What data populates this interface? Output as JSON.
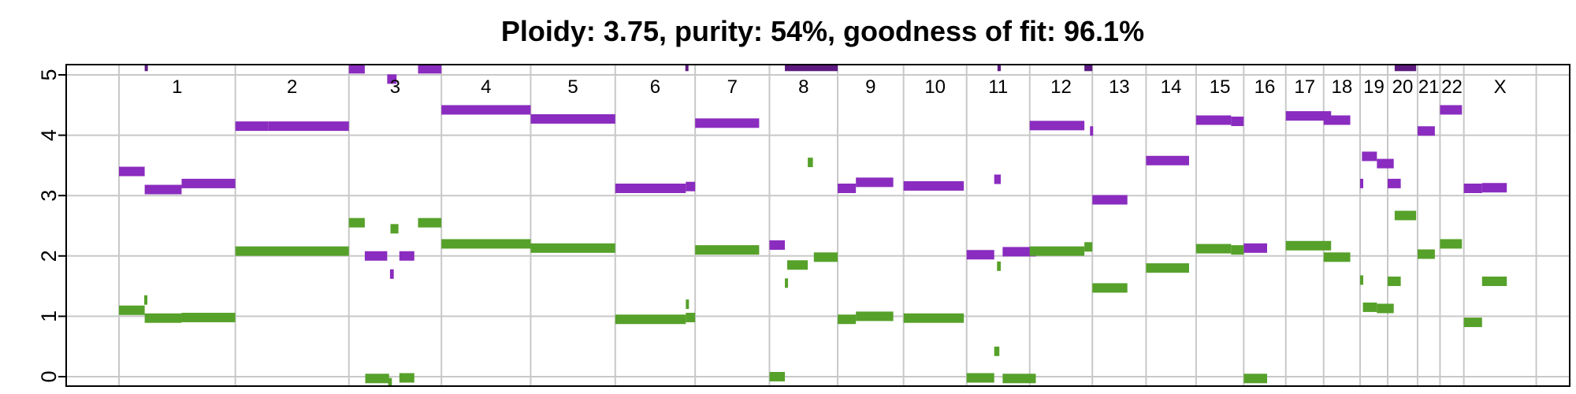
{
  "chart_data": {
    "type": "scatter",
    "title": "Ploidy: 3.75, purity: 54%, goodness of fit: 96.1%",
    "xlabel": "",
    "ylabel": "",
    "ylim": [
      -0.15,
      5.1
    ],
    "xlim": [
      0,
      3103
    ],
    "yticks": [
      0,
      1,
      2,
      3,
      4,
      5
    ],
    "grid": true,
    "legend": "none",
    "colors": {
      "major": "#8a2cbf",
      "minor": "#56a12a",
      "clipped": "#5c1a80",
      "grid": "#c8c8c8"
    },
    "chromosomes": [
      {
        "label": "1",
        "start": 0,
        "end": 249
      },
      {
        "label": "2",
        "start": 249,
        "end": 492
      },
      {
        "label": "3",
        "start": 492,
        "end": 690
      },
      {
        "label": "4",
        "start": 690,
        "end": 881
      },
      {
        "label": "5",
        "start": 881,
        "end": 1062
      },
      {
        "label": "6",
        "start": 1062,
        "end": 1233
      },
      {
        "label": "7",
        "start": 1233,
        "end": 1392
      },
      {
        "label": "8",
        "start": 1392,
        "end": 1538
      },
      {
        "label": "9",
        "start": 1538,
        "end": 1679
      },
      {
        "label": "10",
        "start": 1679,
        "end": 1814
      },
      {
        "label": "11",
        "start": 1814,
        "end": 1949
      },
      {
        "label": "12",
        "start": 1949,
        "end": 2083
      },
      {
        "label": "13",
        "start": 2083,
        "end": 2198
      },
      {
        "label": "14",
        "start": 2198,
        "end": 2305
      },
      {
        "label": "15",
        "start": 2305,
        "end": 2407
      },
      {
        "label": "16",
        "start": 2407,
        "end": 2497
      },
      {
        "label": "17",
        "start": 2497,
        "end": 2578
      },
      {
        "label": "18",
        "start": 2578,
        "end": 2656
      },
      {
        "label": "19",
        "start": 2656,
        "end": 2715
      },
      {
        "label": "20",
        "start": 2715,
        "end": 2779
      },
      {
        "label": "21",
        "start": 2779,
        "end": 2827
      },
      {
        "label": "22",
        "start": 2827,
        "end": 2878
      },
      {
        "label": "X",
        "start": 2878,
        "end": 3033
      }
    ],
    "series": [
      {
        "role": "major",
        "segments": [
          [
            0,
            55,
            3.4
          ],
          [
            55,
            134,
            3.1
          ],
          [
            134,
            249,
            3.2
          ],
          [
            55,
            59,
            5.15
          ],
          [
            249,
            320,
            4.15
          ],
          [
            320,
            492,
            4.15
          ],
          [
            492,
            526,
            5.1
          ],
          [
            526,
            574,
            2.0
          ],
          [
            574,
            594,
            4.93
          ],
          [
            580,
            588,
            1.7
          ],
          [
            600,
            632,
            2.0
          ],
          [
            640,
            690,
            5.1
          ],
          [
            690,
            881,
            4.42
          ],
          [
            881,
            1062,
            4.27
          ],
          [
            1062,
            1213,
            3.12
          ],
          [
            1213,
            1233,
            3.15
          ],
          [
            1212,
            1217,
            5.12
          ],
          [
            1233,
            1370,
            4.2
          ],
          [
            1392,
            1425,
            2.18
          ],
          [
            1425,
            1538,
            5.12
          ],
          [
            1538,
            1577,
            3.12
          ],
          [
            1577,
            1657,
            3.22
          ],
          [
            1679,
            1808,
            3.16
          ],
          [
            1814,
            1873,
            2.02
          ],
          [
            1873,
            1887,
            3.27
          ],
          [
            1880,
            1887,
            5.12
          ],
          [
            1891,
            1962,
            2.07
          ],
          [
            1949,
            2066,
            4.16
          ],
          [
            2066,
            2083,
            5.12
          ],
          [
            2078,
            2083,
            4.07
          ],
          [
            2083,
            2158,
            2.93
          ],
          [
            2198,
            2290,
            3.58
          ],
          [
            2305,
            2380,
            4.25
          ],
          [
            2380,
            2407,
            4.23
          ],
          [
            2407,
            2457,
            2.13
          ],
          [
            2497,
            2594,
            4.32
          ],
          [
            2578,
            2635,
            4.25
          ],
          [
            2656,
            2660,
            3.2
          ],
          [
            2660,
            2692,
            3.65
          ],
          [
            2692,
            2728,
            3.53
          ],
          [
            2715,
            2743,
            3.2
          ],
          [
            2730,
            2776,
            5.12
          ],
          [
            2779,
            2816,
            4.07
          ],
          [
            2827,
            2874,
            4.42
          ],
          [
            2878,
            2917,
            3.12
          ],
          [
            2917,
            2970,
            3.13
          ]
        ]
      },
      {
        "role": "minor",
        "segments": [
          [
            0,
            55,
            1.1
          ],
          [
            55,
            134,
            0.97
          ],
          [
            134,
            249,
            0.98
          ],
          [
            54,
            59,
            1.27
          ],
          [
            249,
            492,
            2.08
          ],
          [
            492,
            526,
            2.55
          ],
          [
            527,
            578,
            -0.03
          ],
          [
            576,
            584,
            -0.1
          ],
          [
            581,
            598,
            2.45
          ],
          [
            600,
            632,
            -0.02
          ],
          [
            640,
            690,
            2.55
          ],
          [
            690,
            881,
            2.2
          ],
          [
            881,
            1062,
            2.13
          ],
          [
            1062,
            1213,
            0.95
          ],
          [
            1213,
            1217,
            1.2
          ],
          [
            1213,
            1233,
            0.98
          ],
          [
            1233,
            1370,
            2.1
          ],
          [
            1392,
            1425,
            0.0
          ],
          [
            1425,
            1430,
            1.55
          ],
          [
            1430,
            1474,
            1.85
          ],
          [
            1474,
            1485,
            3.55
          ],
          [
            1487,
            1538,
            1.98
          ],
          [
            1538,
            1577,
            0.95
          ],
          [
            1577,
            1657,
            1.0
          ],
          [
            1679,
            1808,
            0.97
          ],
          [
            1814,
            1873,
            -0.02
          ],
          [
            1873,
            1884,
            0.42
          ],
          [
            1879,
            1887,
            1.83
          ],
          [
            1891,
            1962,
            -0.03
          ],
          [
            1949,
            2066,
            2.08
          ],
          [
            2066,
            2083,
            2.15
          ],
          [
            2083,
            2158,
            1.47
          ],
          [
            2198,
            2290,
            1.8
          ],
          [
            2305,
            2380,
            2.12
          ],
          [
            2380,
            2407,
            2.1
          ],
          [
            2407,
            2457,
            -0.03
          ],
          [
            2497,
            2594,
            2.17
          ],
          [
            2578,
            2635,
            1.98
          ],
          [
            2656,
            2662,
            1.6
          ],
          [
            2662,
            2692,
            1.15
          ],
          [
            2692,
            2728,
            1.13
          ],
          [
            2715,
            2743,
            1.58
          ],
          [
            2730,
            2776,
            2.67
          ],
          [
            2779,
            2816,
            2.03
          ],
          [
            2827,
            2874,
            2.2
          ],
          [
            2878,
            2917,
            0.9
          ],
          [
            2917,
            2970,
            1.58
          ]
        ]
      }
    ]
  }
}
